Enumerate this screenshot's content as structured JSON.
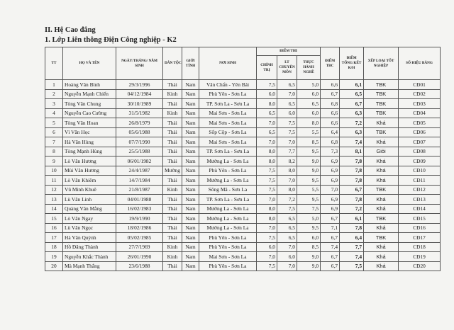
{
  "section_title": "II. Hệ Cao đẳng",
  "class_title": "1. Lớp Liên thông Điện Công nghiệp - K2",
  "headers": {
    "tt": "TT",
    "name": "HỌ VÀ TÊN",
    "dob": "NGÀY/THÁNG/ NĂM SINH",
    "ethnicity": "DÂN TỘC",
    "gender": "GIỚI TÍNH",
    "birthplace": "NƠI SINH",
    "exam": "ĐIỂM THI",
    "politics": "CHÍNH TRỊ",
    "theory": "LT CHUYÊN MÔN",
    "practice": "THỰC HÀNH NGHỀ",
    "tbc": "ĐIỂM TBC",
    "total": "ĐIỂM TỔNG KẾT K/H",
    "rank": "XẾP LOẠI TỐT NGHIỆP",
    "cert": "SỐ HIỆU BẰNG"
  },
  "rows": [
    [
      "1",
      "Hoàng Văn Bình",
      "29/3/1996",
      "Thái",
      "Nam",
      "Văn Chấn - Yên Bái",
      "7,5",
      "6,5",
      "5,0",
      "6,6",
      "6,1",
      "TBK",
      "CĐ01"
    ],
    [
      "2",
      "Nguyễn Mạnh Chiến",
      "04/12/1984",
      "Kinh",
      "Nam",
      "Phù Yên - Sơn La",
      "6,0",
      "7,0",
      "6,0",
      "6,7",
      "6,5",
      "TBK",
      "CĐ02"
    ],
    [
      "3",
      "Tòng Văn Chung",
      "30/10/1989",
      "Thái",
      "Nam",
      "TP. Sơn La - Sơn La",
      "8,0",
      "6,5",
      "6,5",
      "6,8",
      "6,7",
      "TBK",
      "CĐ03"
    ],
    [
      "4",
      "Nguyễn Cao Cường",
      "31/5/1982",
      "Kinh",
      "Nam",
      "Mai Sơn - Sơn La",
      "6,5",
      "6,0",
      "6,0",
      "6,6",
      "6,3",
      "TBK",
      "CĐ04"
    ],
    [
      "5",
      "Tòng Văn Hoan",
      "26/8/1979",
      "Thái",
      "Nam",
      "Mai Sơn - Sơn La",
      "7,0",
      "7,5",
      "8,0",
      "6,6",
      "7,2",
      "Khá",
      "CĐ05"
    ],
    [
      "6",
      "Vì Văn Học",
      "05/6/1988",
      "Thái",
      "Nam",
      "Sốp Cộp - Sơn La",
      "6,5",
      "7,5",
      "5,5",
      "6,4",
      "6,3",
      "TBK",
      "CĐ06"
    ],
    [
      "7",
      "Hà Văn Hùng",
      "07/7/1990",
      "Thái",
      "Nam",
      "Mai Sơn - Sơn La",
      "7,0",
      "7,0",
      "8,5",
      "6,8",
      "7,4",
      "Khá",
      "CĐ07"
    ],
    [
      "8",
      "Tòng Mạnh Hùng",
      "25/5/1988",
      "Thái",
      "Nam",
      "TP. Sơn La - Sơn La",
      "8,0",
      "7,7",
      "9,5",
      "7,3",
      "8,1",
      "Giỏi",
      "CĐ08"
    ],
    [
      "9",
      "Lò Văn Hương",
      "06/01/1982",
      "Thái",
      "Nam",
      "Mường La - Sơn La",
      "8,0",
      "8,2",
      "9,0",
      "6,9",
      "7,8",
      "Khá",
      "CĐ09"
    ],
    [
      "10",
      "Mùi Văn Hương",
      "24/4/1987",
      "Mường",
      "Nam",
      "Phù Yên - Sơn La",
      "7,5",
      "8,0",
      "9,0",
      "6,9",
      "7,8",
      "Khá",
      "CĐ10"
    ],
    [
      "11",
      "Lò Văn Khiêm",
      "14/7/1984",
      "Thái",
      "Nam",
      "Mường La - Sơn La",
      "7,5",
      "7,0",
      "9,5",
      "6,9",
      "7,8",
      "Khá",
      "CĐ11"
    ],
    [
      "12",
      "Vũ Minh Khuê",
      "21/8/1987",
      "Kinh",
      "Nam",
      "Sông Mã - Sơn La",
      "7,5",
      "8,0",
      "5,5",
      "7,0",
      "6,7",
      "TBK",
      "CĐ12"
    ],
    [
      "13",
      "Lù Văn Linh",
      "04/01/1988",
      "Thái",
      "Nam",
      "TP. Sơn La - Sơn La",
      "7,0",
      "7,2",
      "9,5",
      "6,9",
      "7,8",
      "Khá",
      "CĐ13"
    ],
    [
      "14",
      "Quàng Văn Mằng",
      "16/02/1983",
      "Thái",
      "Nam",
      "Mường La - Sơn La",
      "8,0",
      "7,5",
      "7,5",
      "6,9",
      "7,2",
      "Khá",
      "CĐ14"
    ],
    [
      "15",
      "Lò Văn Ngay",
      "19/9/1990",
      "Thái",
      "Nam",
      "Mường La - Sơn La",
      "8,0",
      "6,5",
      "5,0",
      "6,7",
      "6,1",
      "TBK",
      "CĐ15"
    ],
    [
      "16",
      "Lù Văn Ngọc",
      "18/02/1986",
      "Thái",
      "Nam",
      "Mường La - Sơn La",
      "7,0",
      "6,5",
      "9,5",
      "7,1",
      "7,8",
      "Khá",
      "CĐ16"
    ],
    [
      "17",
      "Hà Văn Quỳnh",
      "05/02/1985",
      "Thái",
      "Nam",
      "Phù Yên - Sơn La",
      "7,5",
      "6,5",
      "6,0",
      "6,7",
      "6,4",
      "TBK",
      "CĐ17"
    ],
    [
      "18",
      "Hồ Đăng Thành",
      "27/7/1969",
      "Kinh",
      "Nam",
      "Phù Yên - Sơn La",
      "6,0",
      "7,0",
      "8,5",
      "7,4",
      "7,7",
      "Khá",
      "CĐ18"
    ],
    [
      "19",
      "Nguyễn Khắc Thành",
      "26/01/1990",
      "Kinh",
      "Nam",
      "Mai Sơn - Sơn La",
      "7,0",
      "6,0",
      "9,0",
      "6,7",
      "7,4",
      "Khá",
      "CĐ19"
    ],
    [
      "20",
      "Mà Mạnh Thắng",
      "23/6/1988",
      "Thái",
      "Nam",
      "Phù Yên - Sơn La",
      "7,5",
      "7,0",
      "9,0",
      "6,7",
      "7,5",
      "Khá",
      "CĐ20"
    ]
  ]
}
